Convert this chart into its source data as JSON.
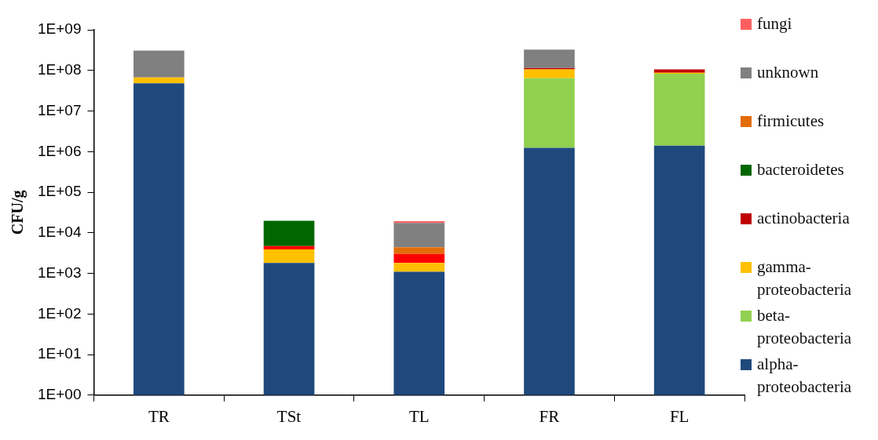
{
  "chart_data": {
    "type": "bar",
    "ylabel": "CFU/g",
    "categories": [
      "TR",
      "TSt",
      "TL",
      "FR",
      "FL"
    ],
    "stacked": true,
    "log": true,
    "ylim": [
      1,
      1000000000
    ],
    "yticks": [
      {
        "value": 1,
        "label": "1E+00"
      },
      {
        "value": 10,
        "label": "1E+01"
      },
      {
        "value": 100,
        "label": "1E+02"
      },
      {
        "value": 1000,
        "label": "1E+03"
      },
      {
        "value": 10000,
        "label": "1E+04"
      },
      {
        "value": 100000,
        "label": "1E+05"
      },
      {
        "value": 1000000,
        "label": "1E+06"
      },
      {
        "value": 10000000,
        "label": "1E+07"
      },
      {
        "value": 100000000,
        "label": "1E+08"
      },
      {
        "value": 1000000000,
        "label": "1E+09"
      }
    ],
    "grid": false,
    "legend": "right",
    "series": [
      {
        "name": "alpha-proteobacteria",
        "color": "#1f497d",
        "values": [
          48000000,
          1800,
          1100,
          1240000,
          1400000
        ]
      },
      {
        "name": "beta-proteobacteria",
        "color": "#92d050",
        "values": [
          null,
          null,
          null,
          63000000,
          81000000
        ]
      },
      {
        "name": "gamma-proteobacteria",
        "color": "#ffc000",
        "values": [
          19000000,
          2100,
          700,
          42000000,
          5000000
        ]
      },
      {
        "name": "actinobacteria",
        "color": "#c00000",
        "colors": [
          "#c00000",
          "#ff0000",
          "#ff0000",
          "#c00000",
          "#c00000"
        ],
        "values": [
          null,
          800,
          1200,
          8000000,
          18000000
        ]
      },
      {
        "name": "bacteroidetes",
        "color": "#006600",
        "values": [
          null,
          15000,
          null,
          null,
          null
        ]
      },
      {
        "name": "firmicutes",
        "color": "#e36c09",
        "values": [
          null,
          null,
          1400,
          null,
          null
        ]
      },
      {
        "name": "unknown",
        "color": "#808080",
        "values": [
          240000000,
          null,
          13000,
          210000000,
          null
        ]
      },
      {
        "name": "fungi",
        "color": "#ff5f5f",
        "values": [
          null,
          null,
          2000,
          null,
          null
        ]
      }
    ]
  }
}
